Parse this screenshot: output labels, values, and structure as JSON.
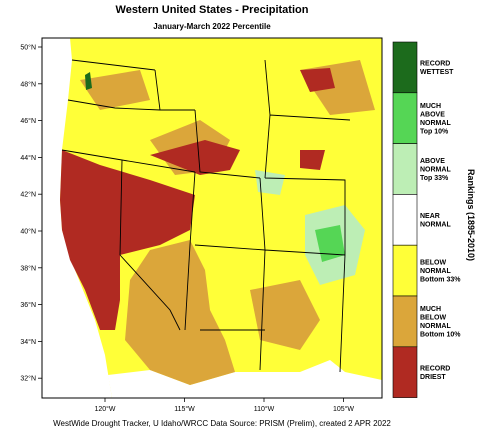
{
  "header": {
    "title": "Western United States - Precipitation",
    "subtitle": "January-March 2022 Percentile"
  },
  "map": {
    "lat_labels": [
      "50°N",
      "48°N",
      "46°N",
      "44°N",
      "42°N",
      "40°N",
      "38°N",
      "36°N",
      "34°N",
      "32°N"
    ],
    "lon_labels": [
      "120°W",
      "115°W",
      "110°W",
      "105°W"
    ]
  },
  "legend": {
    "title": "Rankings (1895-2010)",
    "items": [
      {
        "lines": [
          "RECORD",
          "WETTEST"
        ],
        "color": "#1c6b1c"
      },
      {
        "lines": [
          "MUCH",
          "ABOVE",
          "NORMAL",
          "Top 10%"
        ],
        "color": "#55d655"
      },
      {
        "lines": [
          "ABOVE",
          "NORMAL",
          "Top 33%"
        ],
        "color": "#bdeeb5"
      },
      {
        "lines": [
          "NEAR",
          "NORMAL"
        ],
        "color": "#ffffff"
      },
      {
        "lines": [
          "BELOW",
          "NORMAL",
          "Bottom 33%"
        ],
        "color": "#ffff38"
      },
      {
        "lines": [
          "MUCH",
          "BELOW",
          "NORMAL",
          "Bottom 10%"
        ],
        "color": "#dba63a"
      },
      {
        "lines": [
          "RECORD",
          "DRIEST"
        ],
        "color": "#b02a22"
      }
    ]
  },
  "footer": "WestWide Drought Tracker, U Idaho/WRCC Data Source: PRISM (Prelim), created  2 APR 2022"
}
